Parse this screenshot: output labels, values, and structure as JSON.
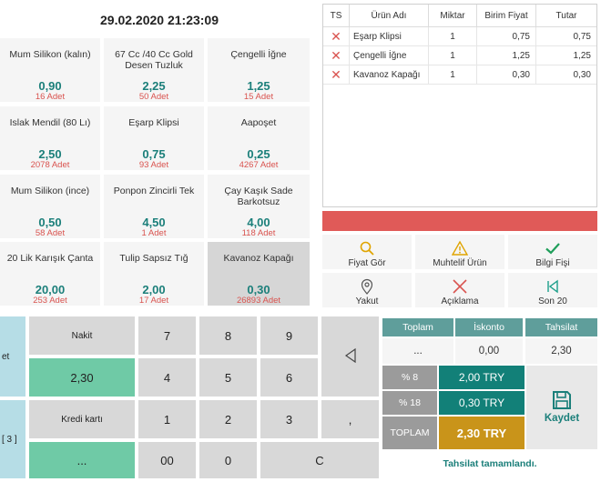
{
  "header": {
    "datetime": "29.02.2020 21:23:09"
  },
  "products": [
    {
      "name": "Mum Silikon (kalın)",
      "price": "0,90",
      "stock": "16 Adet"
    },
    {
      "name": "67 Cc /40 Cc Gold Desen Tuzluk",
      "price": "2,25",
      "stock": "50 Adet"
    },
    {
      "name": "Çengelli İğne",
      "price": "1,25",
      "stock": "15 Adet"
    },
    {
      "name": "Islak Mendil (80 Lı)",
      "price": "2,50",
      "stock": "2078 Adet"
    },
    {
      "name": "Eşarp Klipsi",
      "price": "0,75",
      "stock": "93 Adet"
    },
    {
      "name": "Aapoşet",
      "price": "0,25",
      "stock": "4267 Adet"
    },
    {
      "name": "Mum Silikon (ince)",
      "price": "0,50",
      "stock": "58 Adet"
    },
    {
      "name": "Ponpon Zincirli Tek",
      "price": "4,50",
      "stock": "1 Adet"
    },
    {
      "name": "Çay Kaşık Sade Barkotsuz",
      "price": "4,00",
      "stock": "118 Adet"
    },
    {
      "name": "20 Lik Karışık Çanta",
      "price": "20,00",
      "stock": "253 Adet"
    },
    {
      "name": "Tulip Sapsız Tığ",
      "price": "2,00",
      "stock": "17 Adet"
    },
    {
      "name": "Kavanoz Kapağı",
      "price": "0,30",
      "stock": "26893 Adet"
    }
  ],
  "receipt": {
    "headers": [
      "TS",
      "Ürün Adı",
      "Miktar",
      "Birim Fiyat",
      "Tutar"
    ],
    "rows": [
      {
        "name": "Eşarp Klipsi",
        "qty": "1",
        "unit": "0,75",
        "total": "0,75"
      },
      {
        "name": "Çengelli İğne",
        "qty": "1",
        "unit": "1,25",
        "total": "1,25"
      },
      {
        "name": "Kavanoz Kapağı",
        "qty": "1",
        "unit": "0,30",
        "total": "0,30"
      }
    ]
  },
  "actions": {
    "fiyat_gor": "Fiyat Gör",
    "muhtelif_urun": "Muhtelif Ürün",
    "bilgi_fisi": "Bilgi Fişi",
    "yakut": "Yakut",
    "aciklama": "Açıklama",
    "son20": "Son 20"
  },
  "payment": {
    "nakit": "Nakit",
    "nakit_amount": "2,30",
    "kredi_karti": "Kredi kartı",
    "kredi_amount": "..."
  },
  "left_edge": {
    "top_fragment": "et",
    "bottom_fragment": "[ 3 ]"
  },
  "keypad": [
    "7",
    "8",
    "9",
    "4",
    "5",
    "6",
    "1",
    "2",
    "3",
    "00",
    "0",
    "C",
    ","
  ],
  "totals": {
    "toplam_label": "Toplam",
    "iskonto_label": "İskonto",
    "tahsilat_label": "Tahsilat",
    "toplam_value": "...",
    "iskonto_value": "0,00",
    "tahsilat_value": "2,30",
    "tax1_label": "% 8",
    "tax1_value": "2,00 TRY",
    "tax2_label": "% 18",
    "tax2_value": "0,30 TRY",
    "grand_label": "TOPLAM",
    "grand_value": "2,30 TRY",
    "save_label": "Kaydet",
    "status": "Tahsilat tamamlandı."
  },
  "colors": {
    "teal": "#1b7f7a",
    "red": "#e05a58",
    "gold": "#c9941a",
    "green": "#6fcaa6"
  }
}
